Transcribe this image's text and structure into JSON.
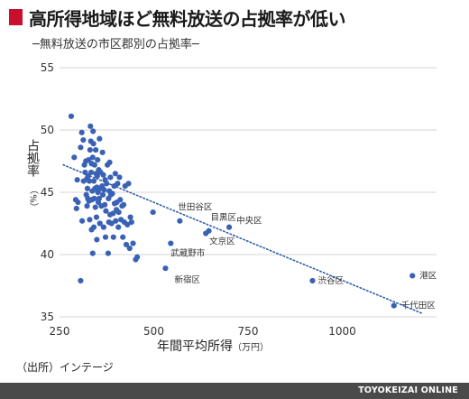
{
  "header": {
    "title": "高所得地域ほど無料放送の占拠率が低い",
    "subtitle": "─無料放送の市区郡別の占拠率─"
  },
  "source": "（出所）インテージ",
  "footer": "TOYOKEIZAI ONLINE",
  "colors": {
    "title_mark": "#c8102e",
    "point": "#3a62b4",
    "trend": "#2f5fae",
    "footer_bg": "#4a4a4a"
  },
  "chart_data": {
    "type": "scatter",
    "xlabel_main": "年間平均所得",
    "xlabel_unit": "（万円）",
    "ylabel_main": "占拠率",
    "ylabel_unit": "（%）",
    "xlim": [
      250,
      1250
    ],
    "ylim": [
      35,
      55
    ],
    "xticks": [
      250,
      500,
      750,
      1000
    ],
    "yticks": [
      35,
      40,
      45,
      50,
      55
    ],
    "trendline": {
      "style": "dotted",
      "from": [
        260,
        47.2
      ],
      "to": [
        1210,
        35.3
      ]
    },
    "labeled_points": [
      {
        "label": "世田谷区",
        "x": 569,
        "y": 42.7
      },
      {
        "label": "目黒区",
        "x": 646,
        "y": 41.9
      },
      {
        "label": "中央区",
        "x": 700,
        "y": 42.2
      },
      {
        "label": "文京区",
        "x": 638,
        "y": 41.7
      },
      {
        "label": "武蔵野市",
        "x": 545,
        "y": 40.9
      },
      {
        "label": "新宿区",
        "x": 531,
        "y": 38.9
      },
      {
        "label": "渋谷区",
        "x": 921,
        "y": 37.9
      },
      {
        "label": "港区",
        "x": 1186,
        "y": 38.3
      },
      {
        "label": "千代田区",
        "x": 1137,
        "y": 35.9
      }
    ],
    "points": [
      [
        281,
        51.1
      ],
      [
        289,
        47.8
      ],
      [
        293,
        44.4
      ],
      [
        295,
        43.7
      ],
      [
        297,
        46.0
      ],
      [
        299,
        44.2
      ],
      [
        306,
        37.9
      ],
      [
        306,
        48.6
      ],
      [
        309,
        49.8
      ],
      [
        310,
        42.7
      ],
      [
        313,
        49.2
      ],
      [
        314,
        45.9
      ],
      [
        316,
        47.2
      ],
      [
        318,
        46.6
      ],
      [
        320,
        47.5
      ],
      [
        321,
        44.8
      ],
      [
        323,
        43.9
      ],
      [
        323,
        46.1
      ],
      [
        324,
        45.3
      ],
      [
        325,
        44.5
      ],
      [
        326,
        46.3
      ],
      [
        327,
        47.6
      ],
      [
        328,
        44.3
      ],
      [
        329,
        45.9
      ],
      [
        330,
        42.8
      ],
      [
        331,
        48.4
      ],
      [
        332,
        50.3
      ],
      [
        333,
        49.1
      ],
      [
        334,
        46.6
      ],
      [
        335,
        42.0
      ],
      [
        335,
        47.3
      ],
      [
        336,
        44.4
      ],
      [
        337,
        45.1
      ],
      [
        338,
        40.1
      ],
      [
        338,
        47.8
      ],
      [
        339,
        49.9
      ],
      [
        340,
        48.9
      ],
      [
        341,
        42.2
      ],
      [
        341,
        45.9
      ],
      [
        342,
        44.5
      ],
      [
        343,
        47.2
      ],
      [
        344,
        45.3
      ],
      [
        345,
        43.8
      ],
      [
        346,
        48.4
      ],
      [
        347,
        46.5
      ],
      [
        348,
        43.0
      ],
      [
        349,
        45.4
      ],
      [
        349,
        41.2
      ],
      [
        350,
        46.3
      ],
      [
        351,
        47.6
      ],
      [
        352,
        45.0
      ],
      [
        353,
        44.2
      ],
      [
        354,
        46.8
      ],
      [
        355,
        44.5
      ],
      [
        356,
        49.3
      ],
      [
        357,
        42.5
      ],
      [
        358,
        45.3
      ],
      [
        359,
        46.6
      ],
      [
        361,
        43.9
      ],
      [
        363,
        45.5
      ],
      [
        364,
        48.2
      ],
      [
        365,
        44.8
      ],
      [
        366,
        46.4
      ],
      [
        367,
        42.2
      ],
      [
        368,
        45.2
      ],
      [
        370,
        44.0
      ],
      [
        371,
        46.0
      ],
      [
        372,
        41.4
      ],
      [
        373,
        43.5
      ],
      [
        375,
        45.7
      ],
      [
        377,
        47.2
      ],
      [
        379,
        40.1
      ],
      [
        380,
        44.5
      ],
      [
        381,
        42.6
      ],
      [
        382,
        45.1
      ],
      [
        383,
        47.4
      ],
      [
        384,
        43.2
      ],
      [
        385,
        46.2
      ],
      [
        386,
        44.8
      ],
      [
        388,
        42.5
      ],
      [
        390,
        44.9
      ],
      [
        392,
        43.3
      ],
      [
        393,
        41.4
      ],
      [
        395,
        45.5
      ],
      [
        396,
        44.1
      ],
      [
        398,
        46.5
      ],
      [
        399,
        42.7
      ],
      [
        401,
        43.6
      ],
      [
        402,
        44.2
      ],
      [
        404,
        45.7
      ],
      [
        406,
        42.2
      ],
      [
        407,
        43.4
      ],
      [
        409,
        46.2
      ],
      [
        411,
        44.4
      ],
      [
        413,
        42.8
      ],
      [
        416,
        43.9
      ],
      [
        418,
        41.4
      ],
      [
        420,
        44.0
      ],
      [
        422,
        42.6
      ],
      [
        424,
        45.5
      ],
      [
        427,
        40.8
      ],
      [
        430,
        42.4
      ],
      [
        433,
        45.7
      ],
      [
        436,
        40.5
      ],
      [
        438,
        43.0
      ],
      [
        441,
        42.6
      ],
      [
        445,
        40.9
      ],
      [
        452,
        39.6
      ],
      [
        456,
        39.8
      ],
      [
        498,
        43.4
      ]
    ]
  }
}
